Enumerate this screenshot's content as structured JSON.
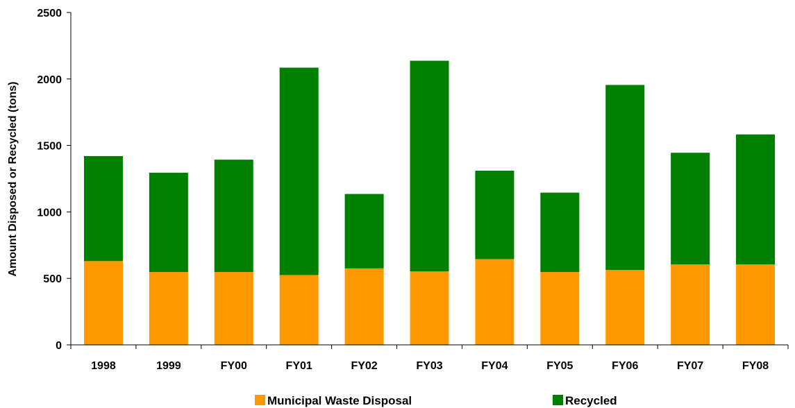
{
  "chart_data": {
    "type": "bar",
    "stacked": true,
    "categories": [
      "1998",
      "1999",
      "FY00",
      "FY01",
      "FY02",
      "FY03",
      "FY04",
      "FY05",
      "FY06",
      "FY07",
      "FY08"
    ],
    "series": [
      {
        "name": "Municipal Waste Disposal",
        "color": "#ff9900",
        "values": [
          630,
          548,
          548,
          525,
          575,
          552,
          645,
          548,
          563,
          605,
          605
        ]
      },
      {
        "name": "Recycled",
        "color": "#008000",
        "values": [
          790,
          747,
          845,
          1560,
          560,
          1585,
          665,
          597,
          1392,
          840,
          978
        ]
      }
    ],
    "ylabel": "Amount Disposed or Recycled (tons)",
    "xlabel": "",
    "title": "",
    "ylim": [
      0,
      2500
    ],
    "yticks": [
      0,
      500,
      1000,
      1500,
      2000,
      2500
    ],
    "grid": false,
    "legend_position": "bottom"
  }
}
